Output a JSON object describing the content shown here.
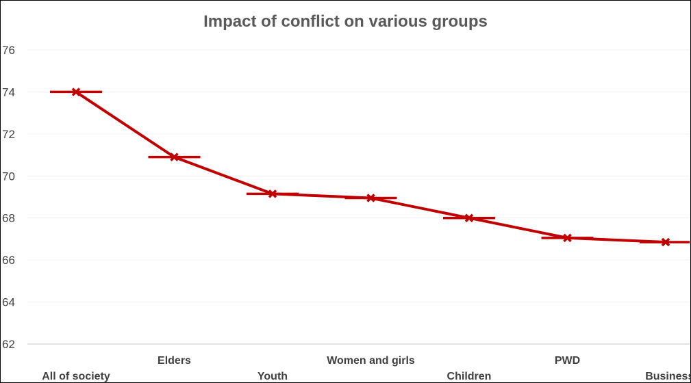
{
  "chart_data": {
    "type": "line",
    "title": "Impact of conflict on various groups",
    "categories": [
      "All of society",
      "Elders",
      "Youth",
      "Women and girls",
      "Children",
      "PWD",
      "Business."
    ],
    "series": [
      {
        "values": [
          74.0,
          70.9,
          69.15,
          68.95,
          68.0,
          67.05,
          66.85
        ],
        "color": "#C00000"
      }
    ],
    "ylim": [
      62,
      76
    ],
    "yticks": [
      62,
      64,
      66,
      68,
      70,
      72,
      74,
      76
    ],
    "grid": true,
    "marker": "x-with-horizontal-bar",
    "xlabel": "",
    "ylabel": ""
  }
}
